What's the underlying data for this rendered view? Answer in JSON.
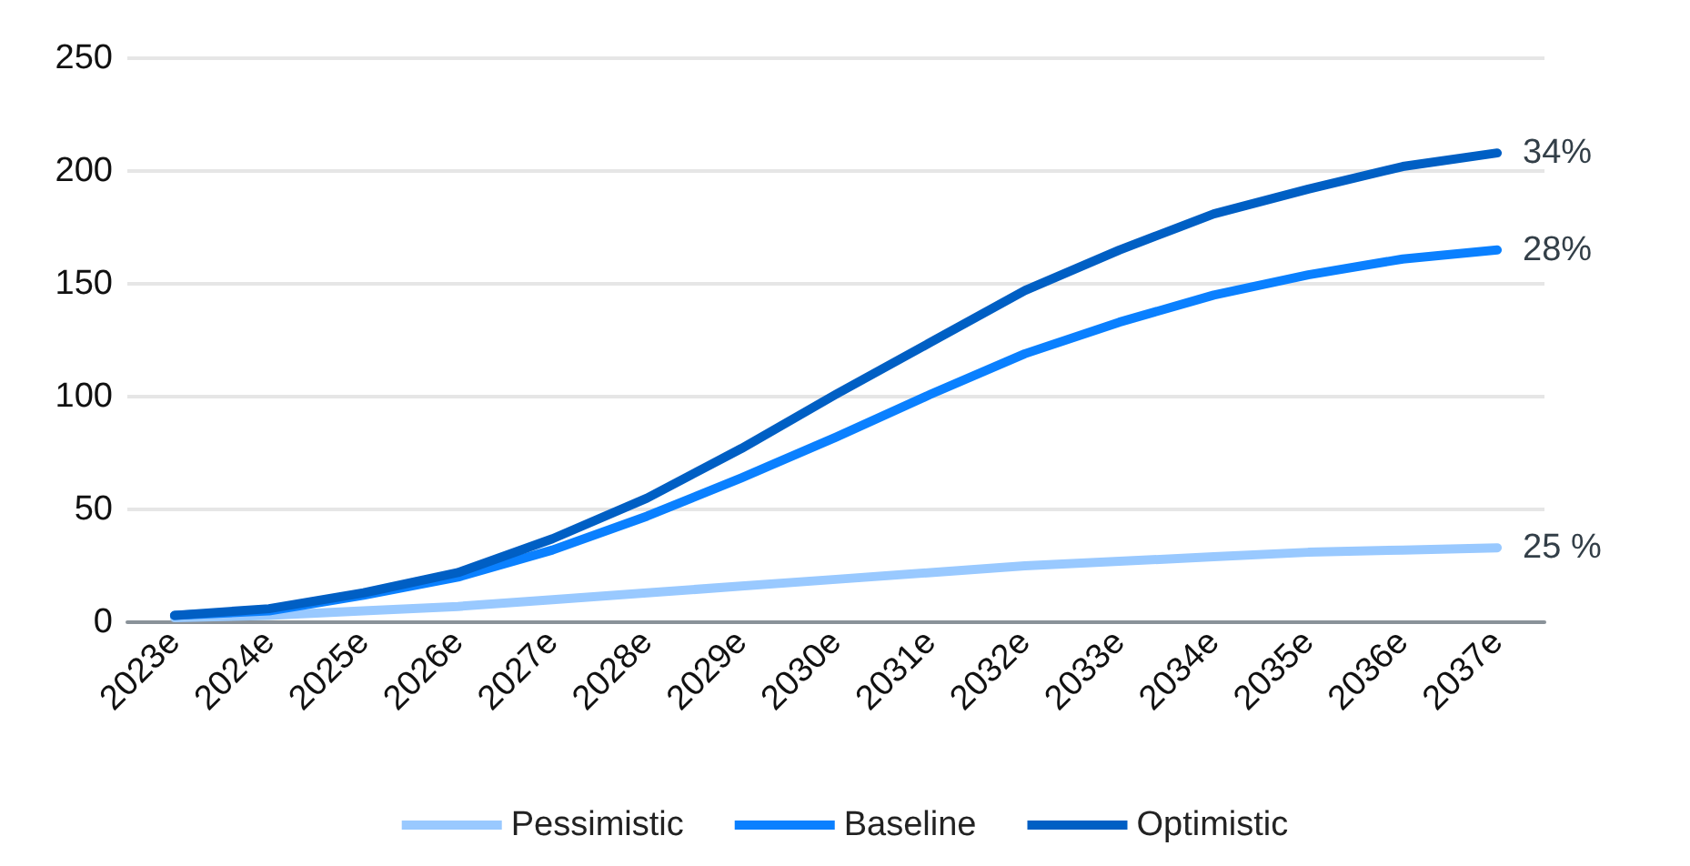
{
  "chart_data": {
    "type": "line",
    "categories": [
      "2023e",
      "2024e",
      "2025e",
      "2026e",
      "2027e",
      "2028e",
      "2029e",
      "2030e",
      "2031e",
      "2032e",
      "2033e",
      "2034e",
      "2035e",
      "2036e",
      "2037e"
    ],
    "series": [
      {
        "name": "Pessimistic",
        "color": "#99c9ff",
        "values": [
          2,
          3,
          5,
          7,
          10,
          13,
          16,
          19,
          22,
          25,
          27,
          29,
          31,
          32,
          33
        ]
      },
      {
        "name": "Baseline",
        "color": "#0a80ff",
        "values": [
          3,
          5,
          12,
          20,
          32,
          47,
          64,
          82,
          101,
          119,
          133,
          145,
          154,
          161,
          165
        ]
      },
      {
        "name": "Optimistic",
        "color": "#005fc4",
        "values": [
          3,
          6,
          13,
          22,
          37,
          55,
          77,
          101,
          124,
          147,
          165,
          181,
          192,
          202,
          208
        ]
      }
    ],
    "ylim": [
      0,
      250
    ],
    "yticks": [
      0,
      50,
      100,
      150,
      200,
      250
    ],
    "grid": "y",
    "legend": "bottom",
    "marker": "none",
    "line_style": "solid",
    "annotations": [
      {
        "text": "34%",
        "x": "2037e",
        "y": 208
      },
      {
        "text": "28%",
        "x": "2037e",
        "y": 165
      },
      {
        "text": "25 %",
        "x": "2037e",
        "y": 33
      }
    ]
  }
}
